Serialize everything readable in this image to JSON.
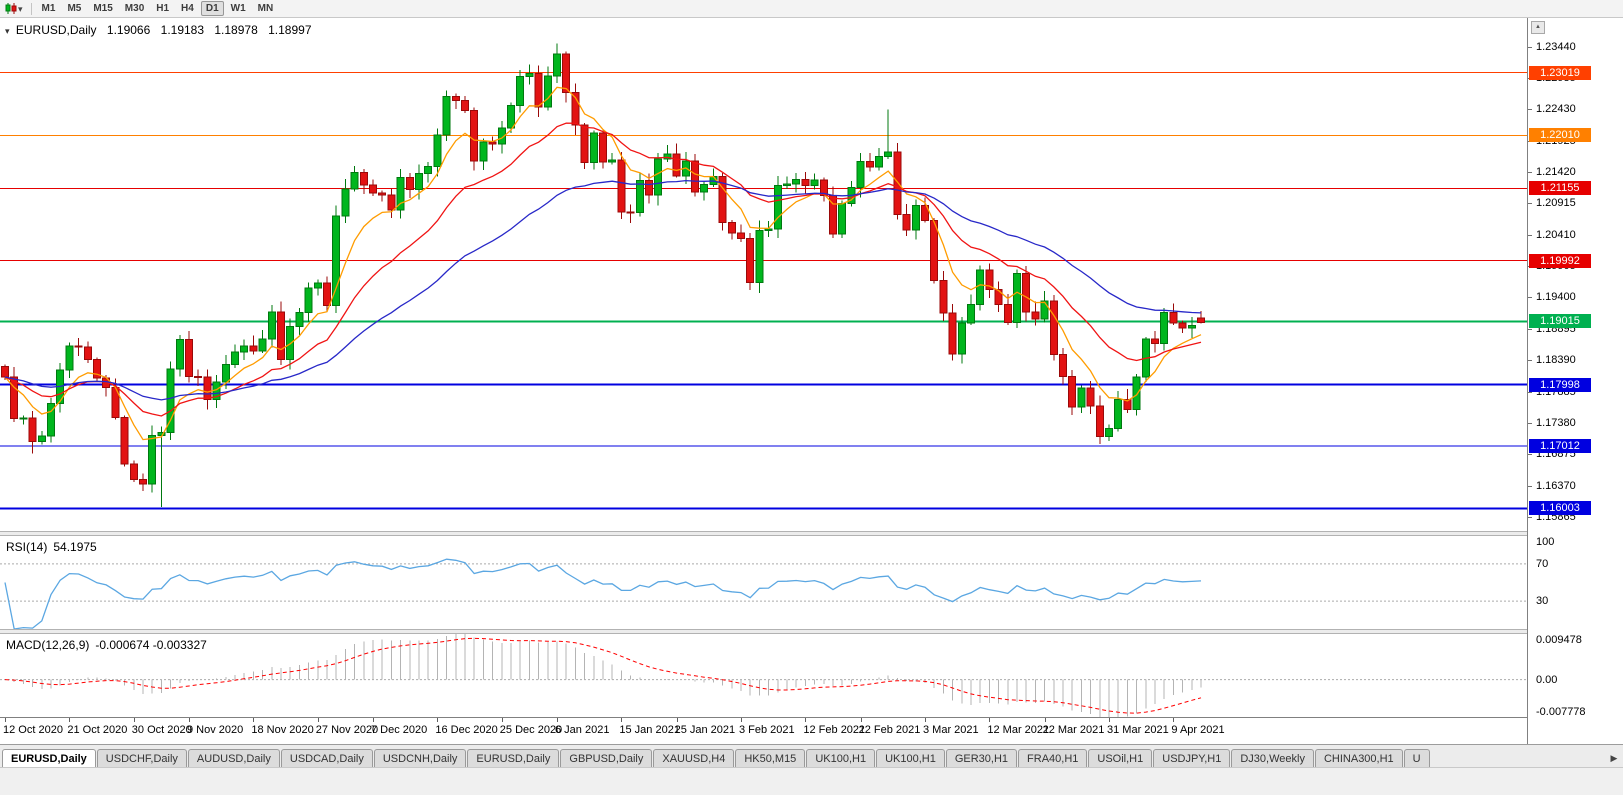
{
  "toolbar": {
    "timeframes": [
      "M1",
      "M5",
      "M15",
      "M30",
      "H1",
      "H4",
      "D1",
      "W1",
      "MN"
    ],
    "active_timeframe": "D1",
    "dropdown_caret": "▾"
  },
  "chart_header": {
    "marker": "▾",
    "symbol": "EURUSD,Daily",
    "open": "1.19066",
    "high": "1.19183",
    "low": "1.18978",
    "close": "1.18997"
  },
  "price_axis": {
    "scroll_button_icon": "▲",
    "labels": [
      "1.23440",
      "1.22935",
      "1.22430",
      "1.21925",
      "1.21420",
      "1.20915",
      "1.20410",
      "1.19905",
      "1.19400",
      "1.18895",
      "1.18390",
      "1.17885",
      "1.17380",
      "1.16875",
      "1.16370",
      "1.15865"
    ]
  },
  "hlines": [
    {
      "price": 1.23019,
      "label": "1.23019",
      "color": "#ff4000",
      "width": 1
    },
    {
      "price": 1.2201,
      "label": "1.22010",
      "color": "#ff8000",
      "width": 1
    },
    {
      "price": 1.21155,
      "label": "1.21155",
      "color": "#e60000",
      "width": 1
    },
    {
      "price": 1.19992,
      "label": "1.19992",
      "color": "#e60000",
      "width": 1
    },
    {
      "price": 1.19015,
      "label": "1.19015",
      "color": "#00b050",
      "width": 2
    },
    {
      "price": 1.17998,
      "label": "1.17998",
      "color": "#0000e0",
      "width": 2
    },
    {
      "price": 1.17012,
      "label": "1.17012",
      "color": "#0000e0",
      "width": 1
    },
    {
      "price": 1.16003,
      "label": "1.16003",
      "color": "#0000e0",
      "width": 2
    }
  ],
  "date_axis": {
    "labels": [
      {
        "text": "12 Oct 2020",
        "index": 0
      },
      {
        "text": "21 Oct 2020",
        "index": 7
      },
      {
        "text": "30 Oct 2020",
        "index": 14
      },
      {
        "text": "9 Nov 2020",
        "index": 20
      },
      {
        "text": "18 Nov 2020",
        "index": 27
      },
      {
        "text": "27 Nov 2020",
        "index": 34
      },
      {
        "text": "7 Dec 2020",
        "index": 40
      },
      {
        "text": "16 Dec 2020",
        "index": 47
      },
      {
        "text": "25 Dec 2020",
        "index": 54
      },
      {
        "text": "6 Jan 2021",
        "index": 60
      },
      {
        "text": "15 Jan 2021",
        "index": 67
      },
      {
        "text": "25 Jan 2021",
        "index": 73
      },
      {
        "text": "3 Feb 2021",
        "index": 80
      },
      {
        "text": "12 Feb 2021",
        "index": 87
      },
      {
        "text": "22 Feb 2021",
        "index": 93
      },
      {
        "text": "3 Mar 2021",
        "index": 100
      },
      {
        "text": "12 Mar 2021",
        "index": 107
      },
      {
        "text": "22 Mar 2021",
        "index": 113
      },
      {
        "text": "31 Mar 2021",
        "index": 120
      },
      {
        "text": "9 Apr 2021",
        "index": 127
      }
    ]
  },
  "rsi_panel": {
    "title": "RSI(14)",
    "value": "54.1975",
    "line_color": "#5ba7e2",
    "range": [
      0,
      100
    ],
    "levels": [
      70,
      30
    ],
    "axis_labels": [
      {
        "text": "100",
        "value": 100
      },
      {
        "text": "70",
        "value": 70
      },
      {
        "text": "30",
        "value": 30
      }
    ]
  },
  "macd_panel": {
    "title": "MACD(12,26,9)",
    "values": "-0.000674 -0.003327",
    "histogram_color": "#b4b4b4",
    "signal_color": "#ff0000",
    "range": [
      -0.007778,
      0.009478
    ],
    "axis_labels": [
      {
        "text": "0.009478",
        "value": 0.009478
      },
      {
        "text": "0.00",
        "value": 0
      },
      {
        "text": "-0.007778",
        "value": -0.007778
      }
    ]
  },
  "tabs": {
    "scroll_right_icon": "▶",
    "items": [
      {
        "label": "EURUSD,Daily",
        "active": true
      },
      {
        "label": "USDCHF,Daily",
        "active": false
      },
      {
        "label": "AUDUSD,Daily",
        "active": false
      },
      {
        "label": "USDCAD,Daily",
        "active": false
      },
      {
        "label": "USDCNH,Daily",
        "active": false
      },
      {
        "label": "EURUSD,Daily",
        "active": false
      },
      {
        "label": "GBPUSD,Daily",
        "active": false
      },
      {
        "label": "XAUUSD,H4",
        "active": false
      },
      {
        "label": "HK50,M15",
        "active": false
      },
      {
        "label": "UK100,H1",
        "active": false
      },
      {
        "label": "UK100,H1",
        "active": false
      },
      {
        "label": "GER30,H1",
        "active": false
      },
      {
        "label": "FRA40,H1",
        "active": false
      },
      {
        "label": "USOil,H1",
        "active": false
      },
      {
        "label": "USDJPY,H1",
        "active": false
      },
      {
        "label": "DJ30,Weekly",
        "active": false
      },
      {
        "label": "CHINA300,H1",
        "active": false
      },
      {
        "label": "U",
        "active": false
      }
    ]
  },
  "chart_data": {
    "type": "candlestick",
    "symbol": "EURUSD",
    "timeframe": "Daily",
    "title": "EURUSD,Daily",
    "current": {
      "open": 1.19066,
      "high": 1.19183,
      "low": 1.18978,
      "close": 1.18997
    },
    "price_range": [
      1.1564,
      1.239
    ],
    "prev_close": 1.1829,
    "up_color": "#00b61e",
    "up_border": "#00780f",
    "down_color": "#e21313",
    "down_border": "#9a0909",
    "closes": [
      1.1812,
      1.1745,
      1.1746,
      1.1708,
      1.1717,
      1.1769,
      1.1823,
      1.1862,
      1.186,
      1.184,
      1.181,
      1.1795,
      1.1747,
      1.1672,
      1.1647,
      1.164,
      1.1718,
      1.1723,
      1.1825,
      1.1872,
      1.1813,
      1.1812,
      1.1776,
      1.1804,
      1.1832,
      1.1852,
      1.1862,
      1.1854,
      1.1873,
      1.1917,
      1.184,
      1.1893,
      1.1916,
      1.1955,
      1.1963,
      1.1927,
      1.2071,
      1.2115,
      1.2141,
      1.2121,
      1.2108,
      1.2105,
      1.2081,
      1.2133,
      1.2114,
      1.214,
      1.2151,
      1.2202,
      1.2264,
      1.2257,
      1.2241,
      1.216,
      1.219,
      1.2187,
      1.2213,
      1.2249,
      1.2296,
      1.2301,
      1.2247,
      1.2297,
      1.2332,
      1.227,
      1.2218,
      1.2157,
      1.2205,
      1.2158,
      1.2161,
      1.2078,
      1.2077,
      1.2128,
      1.2105,
      1.2163,
      1.2171,
      1.2136,
      1.216,
      1.211,
      1.2122,
      1.2135,
      1.2061,
      1.2044,
      1.2035,
      1.1964,
      1.2048,
      1.205,
      1.212,
      1.2123,
      1.213,
      1.212,
      1.2129,
      1.2104,
      1.2042,
      1.2091,
      1.2117,
      1.2159,
      1.215,
      1.2167,
      1.2174,
      1.2074,
      1.2049,
      1.2088,
      1.2064,
      1.1967,
      1.1915,
      1.1849,
      1.1899,
      1.1929,
      1.1984,
      1.1953,
      1.1929,
      1.19,
      1.1979,
      1.1917,
      1.1905,
      1.1934,
      1.1848,
      1.1813,
      1.1764,
      1.1794,
      1.1765,
      1.1716,
      1.1729,
      1.1776,
      1.176,
      1.1812,
      1.1873,
      1.1866,
      1.1916,
      1.1899,
      1.1891,
      1.1895,
      1.18997
    ],
    "wick_high_overrides": {
      "48": 1.2273,
      "60": 1.2349,
      "96": 1.2243
    },
    "wick_low_overrides": {
      "3": 1.1689,
      "17": 1.1603,
      "81": 1.1952,
      "119": 1.1704,
      "120": 1.1712
    },
    "moving_averages": [
      {
        "type": "ema",
        "period": 7,
        "color": "#ff9c00"
      },
      {
        "type": "ema",
        "period": 18,
        "color": "#f01414"
      },
      {
        "type": "ema",
        "period": 40,
        "color": "#2828c8"
      }
    ],
    "indicators": {
      "rsi": {
        "period": 14,
        "current": 54.1975
      },
      "macd": {
        "fast": 12,
        "slow": 26,
        "signal": 9,
        "current": [
          -0.000674,
          -0.003327
        ]
      }
    },
    "support_resistance_levels": [
      1.23019,
      1.2201,
      1.21155,
      1.19992,
      1.19015,
      1.17998,
      1.17012,
      1.16003
    ]
  }
}
